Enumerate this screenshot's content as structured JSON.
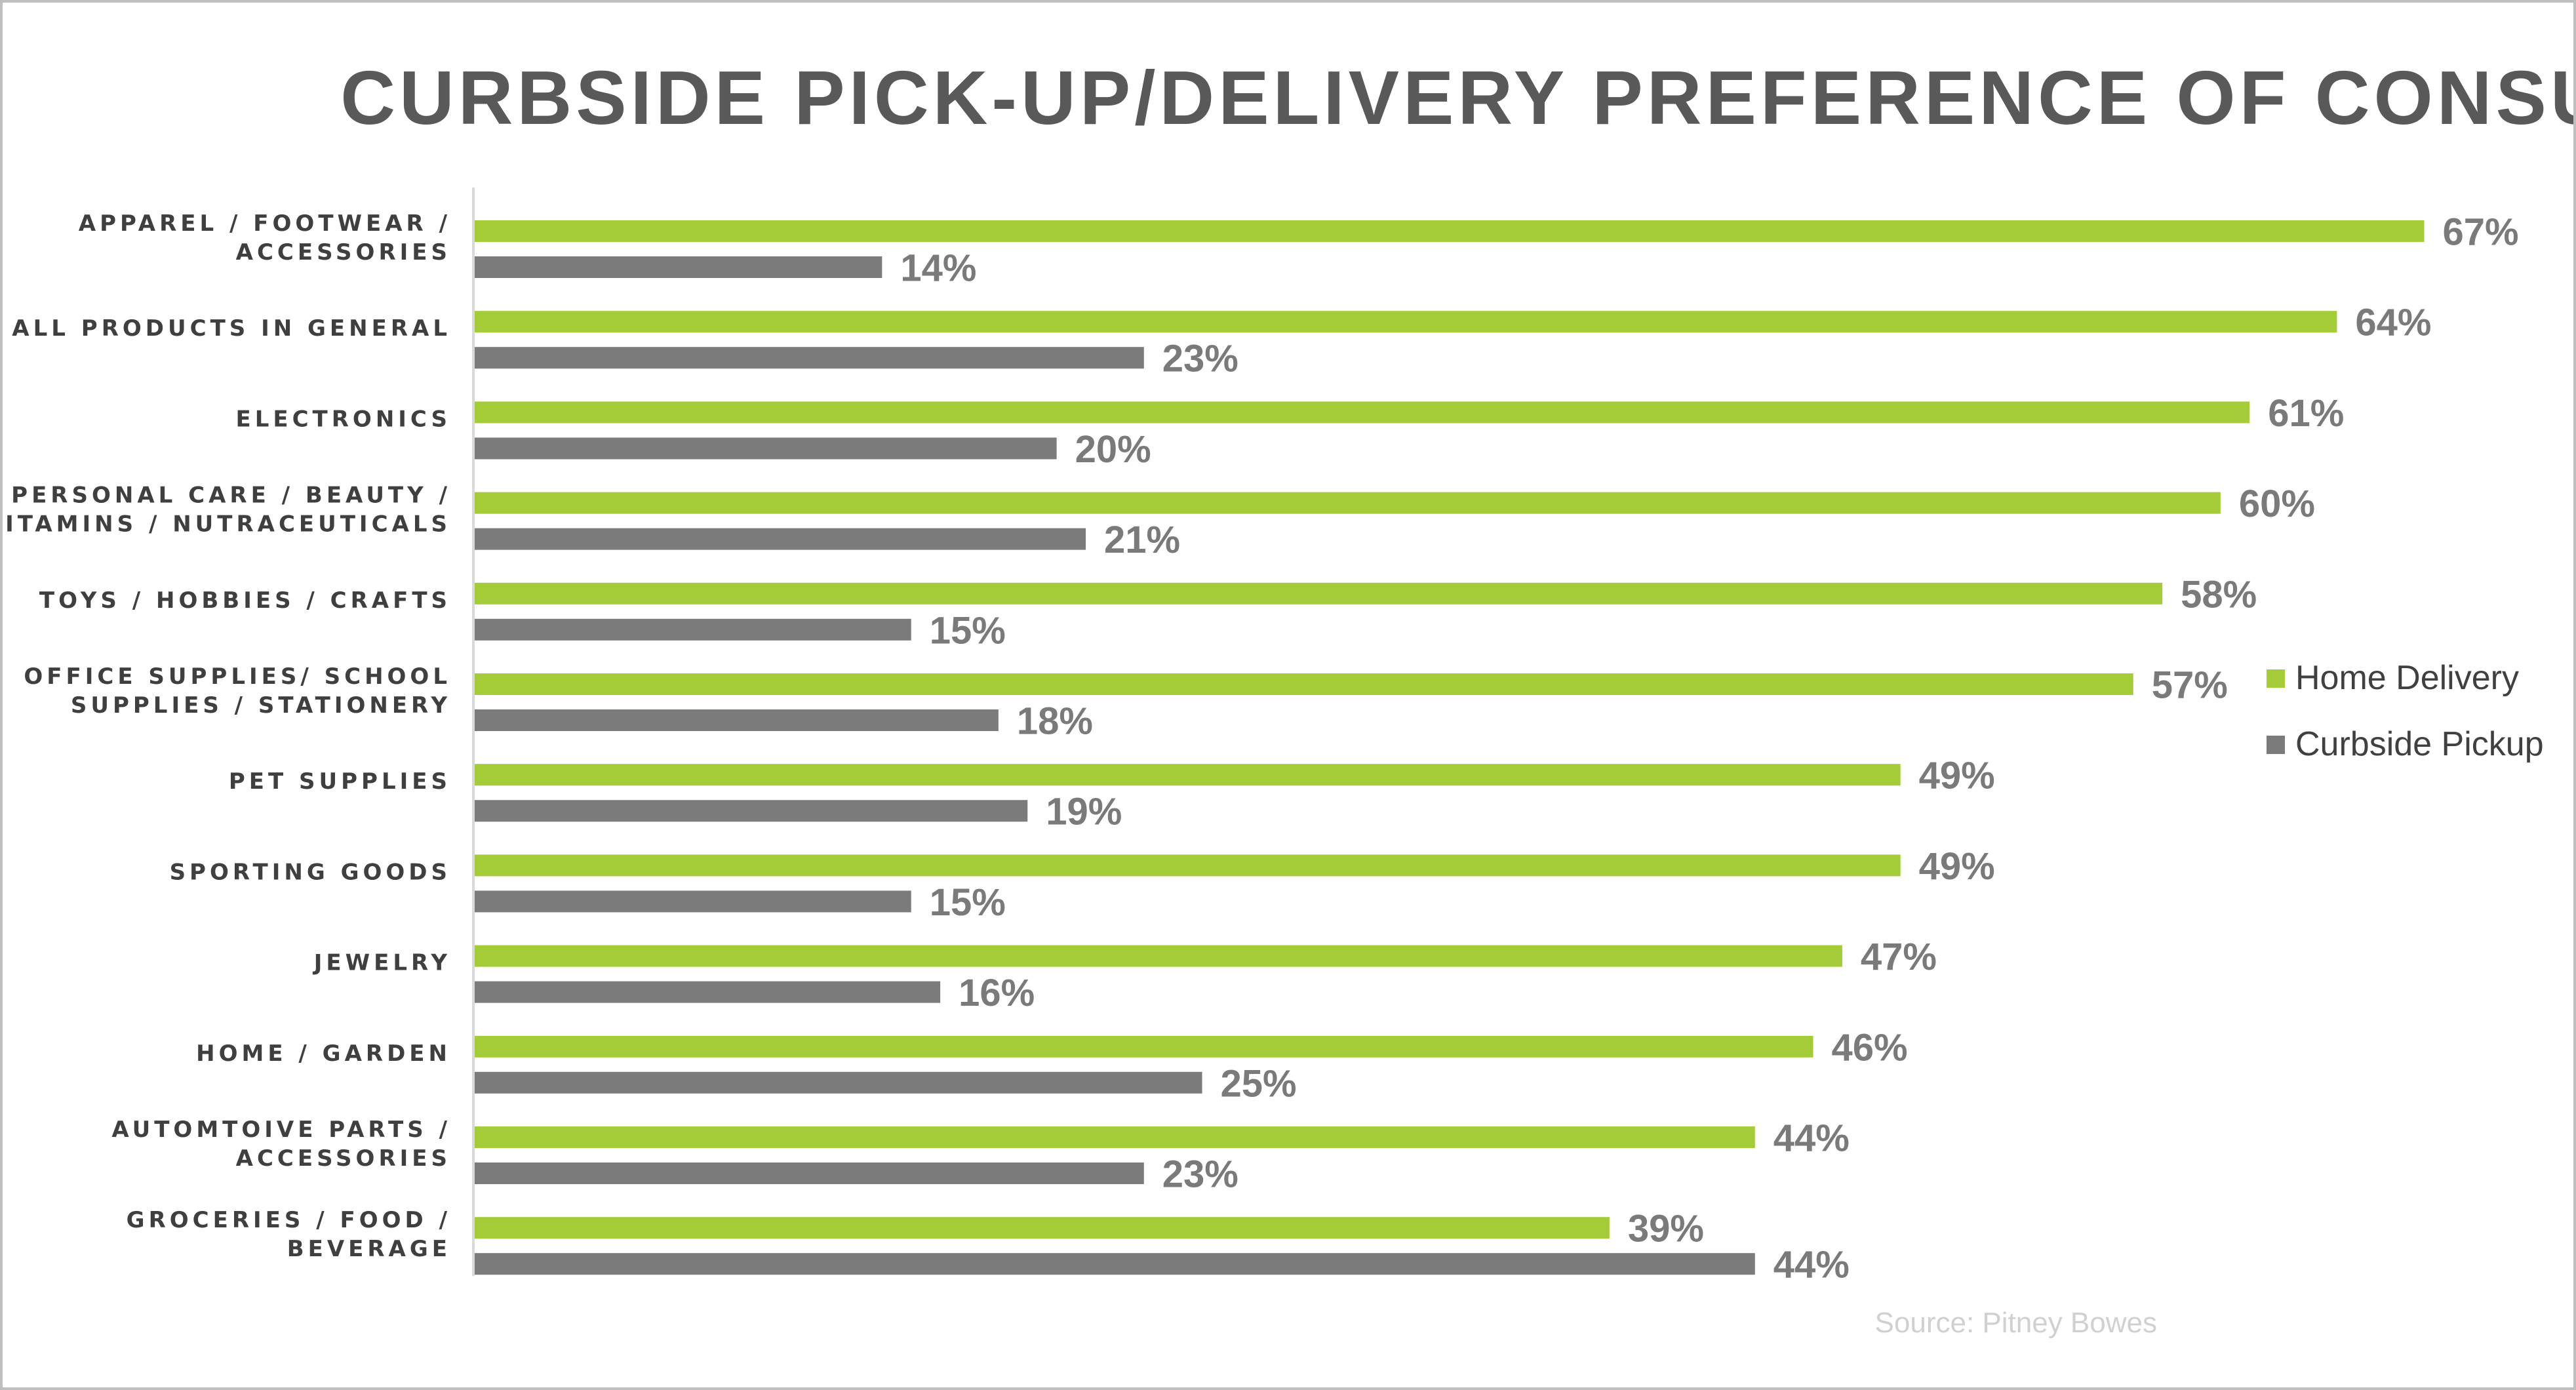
{
  "chart_data": {
    "type": "bar",
    "orientation": "horizontal",
    "title": "CURBSIDE PICK-UP/DELIVERY PREFERENCE OF CONSUMERS",
    "categories": [
      [
        "APPAREL / FOOTWEAR /",
        "ACCESSORIES"
      ],
      [
        "ALL PRODUCTS IN GENERAL"
      ],
      [
        "ELECTRONICS"
      ],
      [
        "PERSONAL CARE / BEAUTY /",
        "VITAMINS / NUTRACEUTICALS"
      ],
      [
        "TOYS / HOBBIES / CRAFTS"
      ],
      [
        "OFFICE SUPPLIES/ SCHOOL",
        "SUPPLIES / STATIONERY"
      ],
      [
        "PET SUPPLIES"
      ],
      [
        "SPORTING GOODS"
      ],
      [
        "JEWELRY"
      ],
      [
        "HOME / GARDEN"
      ],
      [
        "AUTOMTOIVE PARTS /",
        "ACCESSORIES"
      ],
      [
        "GROCERIES / FOOD /",
        "BEVERAGE"
      ]
    ],
    "series": [
      {
        "name": "Home Delivery",
        "color": "#a4cc39",
        "values": [
          67,
          64,
          61,
          60,
          58,
          57,
          49,
          49,
          47,
          46,
          44,
          39
        ]
      },
      {
        "name": "Curbside Pickup",
        "color": "#7b7b7b",
        "values": [
          14,
          23,
          20,
          21,
          15,
          18,
          19,
          15,
          16,
          25,
          23,
          44
        ]
      }
    ],
    "value_suffix": "%",
    "xlim": [
      0,
      67
    ],
    "grid": false,
    "legend_position": "right",
    "source": "Source: Pitney Bowes"
  }
}
